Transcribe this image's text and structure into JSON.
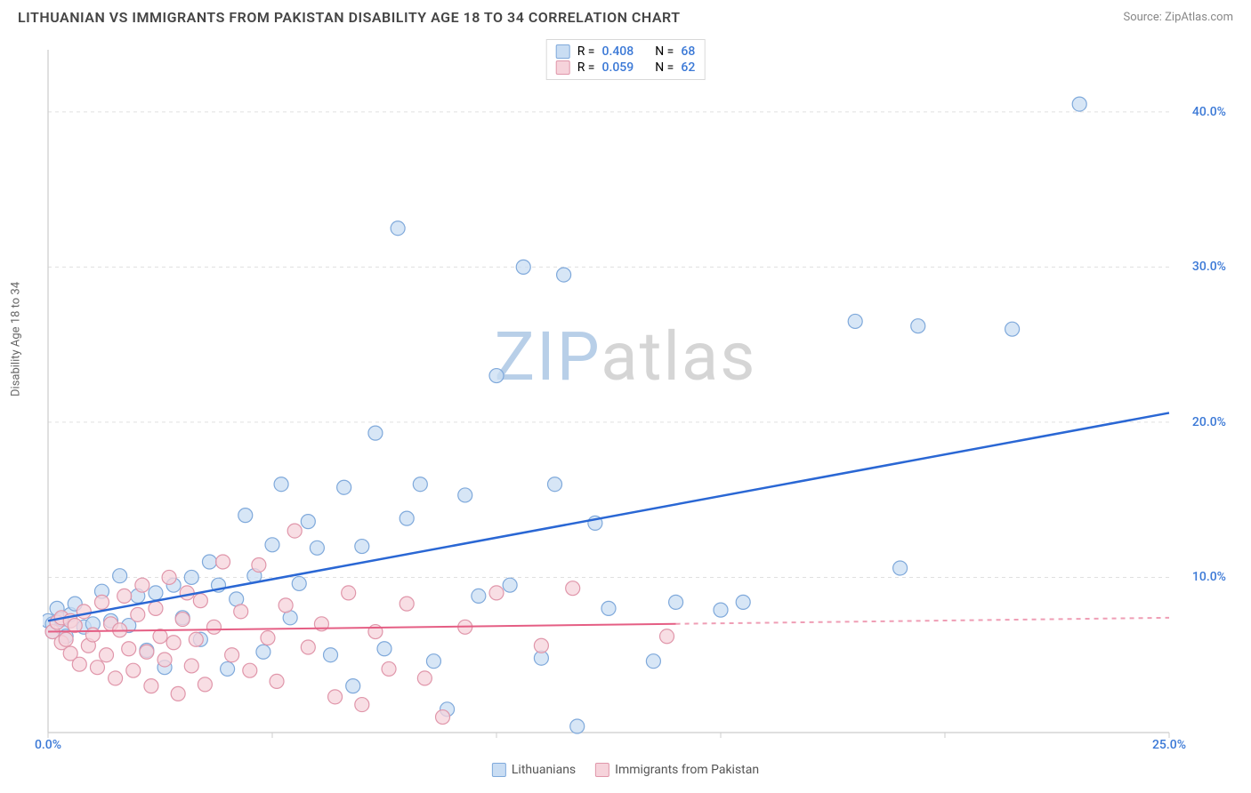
{
  "title": "LITHUANIAN VS IMMIGRANTS FROM PAKISTAN DISABILITY AGE 18 TO 34 CORRELATION CHART",
  "source_label": "Source: ZipAtlas.com",
  "ylabel": "Disability Age 18 to 34",
  "watermark": {
    "w1": "ZIP",
    "w2": "atlas",
    "color1": "#b8cfe8",
    "color2": "#d5d5d5"
  },
  "chart": {
    "type": "scatter",
    "background_color": "#ffffff",
    "grid_color": "#e0e0e0",
    "axis_color": "#cccccc",
    "xlim": [
      0,
      25
    ],
    "ylim": [
      0,
      44
    ],
    "xticks": [
      0,
      5,
      10,
      15,
      20,
      25
    ],
    "xticks_labels": [
      "0.0%",
      "",
      "",
      "",
      "",
      "25.0%"
    ],
    "yticks": [
      10,
      20,
      30,
      40
    ],
    "yticks_labels": [
      "10.0%",
      "20.0%",
      "30.0%",
      "40.0%"
    ],
    "tick_label_color": "#3a78d6",
    "marker_radius": 8,
    "marker_stroke_width": 1.2,
    "series": [
      {
        "name": "Lithuanians",
        "legend_label": "Lithuanians",
        "R": "0.408",
        "N": "68",
        "color_fill": "#c9ddf3",
        "color_stroke": "#7fa9db",
        "trend_color": "#2a67d4",
        "trend_width": 2.5,
        "trend": {
          "x1": 0,
          "y1": 7.2,
          "x2": 25,
          "y2": 20.6
        },
        "points": [
          [
            0.0,
            7.2
          ],
          [
            0.1,
            7.0
          ],
          [
            0.1,
            6.5
          ],
          [
            0.2,
            7.1
          ],
          [
            0.2,
            8.0
          ],
          [
            0.3,
            6.8
          ],
          [
            0.3,
            7.3
          ],
          [
            0.4,
            6.2
          ],
          [
            0.5,
            7.6
          ],
          [
            0.6,
            8.3
          ],
          [
            0.8,
            6.8
          ],
          [
            1.0,
            7.0
          ],
          [
            1.2,
            9.1
          ],
          [
            1.4,
            7.2
          ],
          [
            1.6,
            10.1
          ],
          [
            1.8,
            6.9
          ],
          [
            2.0,
            8.8
          ],
          [
            2.2,
            5.3
          ],
          [
            2.4,
            9.0
          ],
          [
            2.6,
            4.2
          ],
          [
            2.8,
            9.5
          ],
          [
            3.0,
            7.4
          ],
          [
            3.2,
            10.0
          ],
          [
            3.4,
            6.0
          ],
          [
            3.6,
            11.0
          ],
          [
            3.8,
            9.5
          ],
          [
            4.0,
            4.1
          ],
          [
            4.2,
            8.6
          ],
          [
            4.4,
            14.0
          ],
          [
            4.6,
            10.1
          ],
          [
            4.8,
            5.2
          ],
          [
            5.0,
            12.1
          ],
          [
            5.2,
            16.0
          ],
          [
            5.4,
            7.4
          ],
          [
            5.6,
            9.6
          ],
          [
            5.8,
            13.6
          ],
          [
            6.0,
            11.9
          ],
          [
            6.3,
            5.0
          ],
          [
            6.6,
            15.8
          ],
          [
            6.8,
            3.0
          ],
          [
            7.0,
            12.0
          ],
          [
            7.3,
            19.3
          ],
          [
            7.5,
            5.4
          ],
          [
            7.8,
            32.5
          ],
          [
            8.0,
            13.8
          ],
          [
            8.3,
            16.0
          ],
          [
            8.6,
            4.6
          ],
          [
            8.9,
            1.5
          ],
          [
            9.3,
            15.3
          ],
          [
            9.6,
            8.8
          ],
          [
            10.0,
            23.0
          ],
          [
            10.3,
            9.5
          ],
          [
            10.6,
            30.0
          ],
          [
            11.0,
            4.8
          ],
          [
            11.3,
            16.0
          ],
          [
            11.5,
            29.5
          ],
          [
            11.8,
            0.4
          ],
          [
            12.2,
            13.5
          ],
          [
            12.5,
            8.0
          ],
          [
            13.5,
            4.6
          ],
          [
            14.0,
            8.4
          ],
          [
            15.0,
            7.9
          ],
          [
            15.5,
            8.4
          ],
          [
            18.0,
            26.5
          ],
          [
            19.0,
            10.6
          ],
          [
            19.4,
            26.2
          ],
          [
            21.5,
            26.0
          ],
          [
            23.0,
            40.5
          ]
        ]
      },
      {
        "name": "Immigrants from Pakistan",
        "legend_label": "Immigrants from Pakistan",
        "R": "0.059",
        "N": "62",
        "color_fill": "#f6d3db",
        "color_stroke": "#e096aa",
        "trend_color": "#e55e84",
        "trend_width": 2,
        "trend": {
          "x1": 0,
          "y1": 6.5,
          "x2": 25,
          "y2": 7.4
        },
        "trend_dash_after": 14,
        "points": [
          [
            0.1,
            6.5
          ],
          [
            0.2,
            7.1
          ],
          [
            0.3,
            5.8
          ],
          [
            0.3,
            7.4
          ],
          [
            0.4,
            6.0
          ],
          [
            0.5,
            7.2
          ],
          [
            0.5,
            5.1
          ],
          [
            0.6,
            6.9
          ],
          [
            0.7,
            4.4
          ],
          [
            0.8,
            7.8
          ],
          [
            0.9,
            5.6
          ],
          [
            1.0,
            6.3
          ],
          [
            1.1,
            4.2
          ],
          [
            1.2,
            8.4
          ],
          [
            1.3,
            5.0
          ],
          [
            1.4,
            7.0
          ],
          [
            1.5,
            3.5
          ],
          [
            1.6,
            6.6
          ],
          [
            1.7,
            8.8
          ],
          [
            1.8,
            5.4
          ],
          [
            1.9,
            4.0
          ],
          [
            2.0,
            7.6
          ],
          [
            2.1,
            9.5
          ],
          [
            2.2,
            5.2
          ],
          [
            2.3,
            3.0
          ],
          [
            2.4,
            8.0
          ],
          [
            2.5,
            6.2
          ],
          [
            2.6,
            4.7
          ],
          [
            2.7,
            10.0
          ],
          [
            2.8,
            5.8
          ],
          [
            2.9,
            2.5
          ],
          [
            3.0,
            7.3
          ],
          [
            3.1,
            9.0
          ],
          [
            3.2,
            4.3
          ],
          [
            3.3,
            6.0
          ],
          [
            3.4,
            8.5
          ],
          [
            3.5,
            3.1
          ],
          [
            3.7,
            6.8
          ],
          [
            3.9,
            11.0
          ],
          [
            4.1,
            5.0
          ],
          [
            4.3,
            7.8
          ],
          [
            4.5,
            4.0
          ],
          [
            4.7,
            10.8
          ],
          [
            4.9,
            6.1
          ],
          [
            5.1,
            3.3
          ],
          [
            5.3,
            8.2
          ],
          [
            5.5,
            13.0
          ],
          [
            5.8,
            5.5
          ],
          [
            6.1,
            7.0
          ],
          [
            6.4,
            2.3
          ],
          [
            6.7,
            9.0
          ],
          [
            7.0,
            1.8
          ],
          [
            7.3,
            6.5
          ],
          [
            7.6,
            4.1
          ],
          [
            8.0,
            8.3
          ],
          [
            8.4,
            3.5
          ],
          [
            8.8,
            1.0
          ],
          [
            9.3,
            6.8
          ],
          [
            10.0,
            9.0
          ],
          [
            11.0,
            5.6
          ],
          [
            11.7,
            9.3
          ],
          [
            13.8,
            6.2
          ]
        ]
      }
    ]
  },
  "legend_top_prefix_R": "R =",
  "legend_top_prefix_N": "N ="
}
